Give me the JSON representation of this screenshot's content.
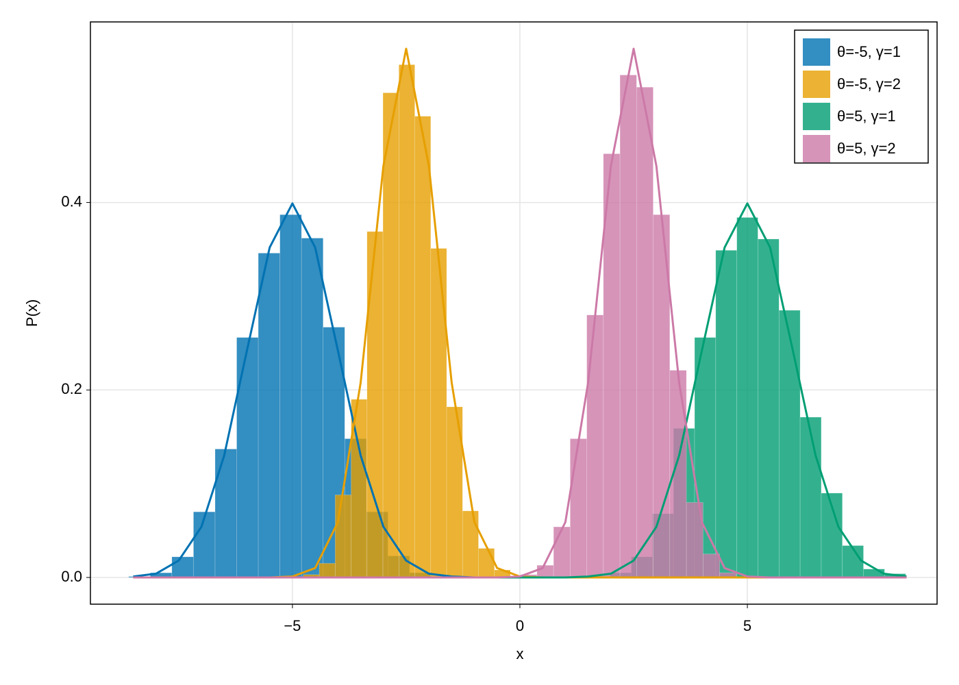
{
  "chart_data": {
    "type": "histogram",
    "xlabel": "x",
    "ylabel": "P(x)",
    "xlim": [
      -9.44,
      9.17
    ],
    "ylim": [
      -0.0285,
      0.5926
    ],
    "xticks": [
      {
        "value": -5,
        "label": "−5"
      },
      0,
      5
    ],
    "yticks": [
      {
        "value": 0,
        "label": "0.0"
      },
      {
        "value": 0.2,
        "label": "0.2"
      },
      {
        "value": 0.4,
        "label": "0.4"
      }
    ],
    "grid": true,
    "legend": "top-right",
    "density_x": [
      -8.5,
      -8,
      -7.5,
      -7,
      -6.5,
      -6,
      -5.5,
      -5,
      -4.5,
      -4,
      -3.5,
      -3,
      -2.5,
      -2,
      -1.5,
      -1,
      -0.5,
      0,
      0.5,
      1,
      1.5,
      2,
      2.5,
      3,
      3.5,
      4,
      4.5,
      5,
      5.5,
      6,
      6.5,
      7,
      7.5,
      8,
      8.5
    ],
    "series": [
      {
        "name": "θ=-5, γ=1",
        "color": "#0072b2",
        "bins": [
          -8.6,
          -8.125,
          -7.65,
          -7.175,
          -6.7,
          -6.225,
          -5.75,
          -5.275,
          -4.8,
          -4.325,
          -3.85,
          -3.375,
          -2.9,
          -2.425,
          -1.95
        ],
        "values": [
          0.001,
          0.005,
          0.022,
          0.07,
          0.137,
          0.256,
          0.346,
          0.387,
          0.362,
          0.267,
          0.148,
          0.07,
          0.023,
          0.005
        ],
        "density": [
          0.001,
          0.004,
          0.018,
          0.054,
          0.13,
          0.242,
          0.352,
          0.399,
          0.352,
          0.242,
          0.13,
          0.054,
          0.018,
          0.004,
          0.001,
          0,
          0,
          0,
          0,
          0,
          0,
          0,
          0,
          0,
          0,
          0,
          0,
          0,
          0,
          0,
          0,
          0,
          0,
          0,
          0
        ]
      },
      {
        "name": "θ=-5, γ=2",
        "color": "#e69f00",
        "bins": [
          -4.76,
          -4.41,
          -4.06,
          -3.71,
          -3.36,
          -3.01,
          -2.66,
          -2.31,
          -1.96,
          -1.61,
          -1.26,
          -0.91,
          -0.56,
          -0.21
        ],
        "values": [
          0.003,
          0.015,
          0.088,
          0.19,
          0.369,
          0.517,
          0.547,
          0.492,
          0.351,
          0.182,
          0.071,
          0.031,
          0.008
        ],
        "density": [
          0,
          0,
          0,
          0,
          0,
          0,
          0,
          0.001,
          0.01,
          0.059,
          0.208,
          0.439,
          0.564,
          0.439,
          0.208,
          0.059,
          0.01,
          0.001,
          0,
          0,
          0,
          0,
          0,
          0,
          0,
          0,
          0,
          0,
          0,
          0,
          0,
          0,
          0,
          0,
          0
        ]
      },
      {
        "name": "θ=5, γ=1",
        "color": "#009e73",
        "bins": [
          1.984,
          2.448,
          2.912,
          3.376,
          3.84,
          4.304,
          4.768,
          5.232,
          5.696,
          6.16,
          6.624,
          7.088,
          7.552,
          8.016,
          8.48
        ],
        "values": [
          0.005,
          0.022,
          0.068,
          0.159,
          0.256,
          0.349,
          0.384,
          0.361,
          0.285,
          0.171,
          0.09,
          0.034,
          0.009,
          0.004
        ],
        "density": [
          0,
          0,
          0,
          0,
          0,
          0,
          0,
          0,
          0,
          0,
          0,
          0,
          0,
          0,
          0,
          0,
          0,
          0,
          0,
          0,
          0.001,
          0.004,
          0.018,
          0.054,
          0.13,
          0.242,
          0.352,
          0.399,
          0.352,
          0.242,
          0.13,
          0.054,
          0.018,
          0.004,
          0.001
        ]
      },
      {
        "name": "θ=5, γ=2",
        "color": "#cc79a7",
        "bins": [
          0.01,
          0.375,
          0.74,
          1.105,
          1.47,
          1.835,
          2.2,
          2.565,
          2.93,
          3.295,
          3.66,
          4.025,
          4.39,
          4.755
        ],
        "values": [
          0.003,
          0.013,
          0.054,
          0.148,
          0.28,
          0.452,
          0.536,
          0.523,
          0.387,
          0.221,
          0.08,
          0.025,
          0.005
        ],
        "density": [
          0,
          0,
          0,
          0,
          0,
          0,
          0,
          0,
          0,
          0,
          0,
          0,
          0,
          0,
          0,
          0,
          0,
          0.001,
          0.01,
          0.059,
          0.208,
          0.439,
          0.564,
          0.439,
          0.208,
          0.059,
          0.01,
          0.001,
          0,
          0,
          0,
          0,
          0,
          0,
          0
        ]
      }
    ]
  }
}
